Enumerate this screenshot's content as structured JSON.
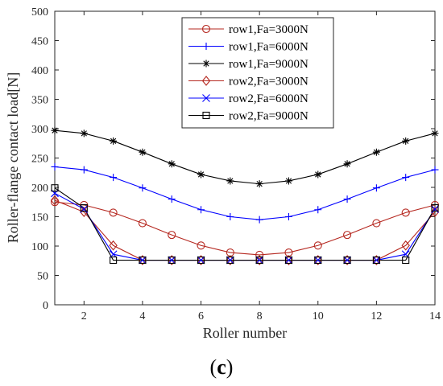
{
  "chart_data": {
    "type": "line",
    "xlabel": "Roller number",
    "ylabel": "Roller-flange contact load[N]",
    "xlim": [
      1,
      14
    ],
    "ylim": [
      0,
      500
    ],
    "xticks": [
      2,
      4,
      6,
      8,
      10,
      12,
      14
    ],
    "yticks": [
      0,
      50,
      100,
      150,
      200,
      250,
      300,
      350,
      400,
      450,
      500
    ],
    "grid": false,
    "legend_position": "top-center",
    "x": [
      1,
      2,
      3,
      4,
      5,
      6,
      7,
      8,
      9,
      10,
      11,
      12,
      13,
      14
    ],
    "series": [
      {
        "name": "row1,Fa=3000N",
        "color": "#b5271f",
        "marker": "circle",
        "values": [
          175,
          170,
          157,
          139,
          119,
          101,
          89,
          85,
          89,
          101,
          119,
          139,
          157,
          170
        ]
      },
      {
        "name": "row1,Fa=6000N",
        "color": "#0000ff",
        "marker": "plus",
        "values": [
          235,
          230,
          217,
          199,
          180,
          162,
          150,
          145,
          150,
          162,
          180,
          199,
          217,
          230
        ]
      },
      {
        "name": "row1,Fa=9000N",
        "color": "#000000",
        "marker": "star",
        "values": [
          297,
          292,
          279,
          260,
          240,
          222,
          211,
          206,
          211,
          222,
          240,
          260,
          279,
          292
        ]
      },
      {
        "name": "row2,Fa=3000N",
        "color": "#b5271f",
        "marker": "diamond",
        "values": [
          178,
          158,
          101,
          76,
          76,
          76,
          76,
          76,
          76,
          76,
          76,
          76,
          101,
          158
        ]
      },
      {
        "name": "row2,Fa=6000N",
        "color": "#0000ff",
        "marker": "x",
        "values": [
          190,
          163,
          86,
          76,
          76,
          76,
          76,
          76,
          76,
          76,
          76,
          76,
          86,
          163
        ]
      },
      {
        "name": "row2,Fa=9000N",
        "color": "#000000",
        "marker": "square",
        "values": [
          199,
          165,
          76,
          76,
          76,
          76,
          76,
          76,
          76,
          76,
          76,
          76,
          76,
          165
        ]
      }
    ]
  },
  "caption": {
    "open": "(",
    "letter": "c",
    "close": ")"
  }
}
